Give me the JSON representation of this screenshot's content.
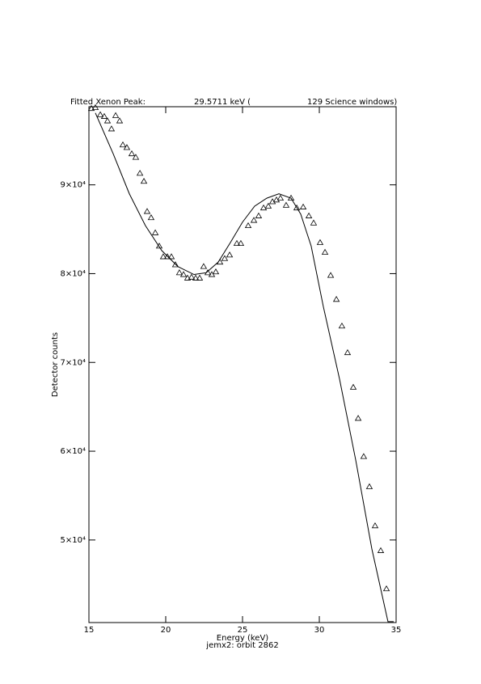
{
  "chart_data": {
    "type": "scatter",
    "title_parts": [
      "Fitted Xenon Peak:",
      "29.5711 keV (",
      "129 Science windows)"
    ],
    "xlabel": "Energy (keV)",
    "subtitle": "jemx2: orbit 2862",
    "ylabel": "Detector counts",
    "xlim": [
      15,
      35
    ],
    "xticks": [
      15,
      20,
      25,
      30,
      35
    ],
    "ylim": [
      40700,
      98800
    ],
    "yticks": [
      {
        "value": 50000,
        "label": "5×10⁴"
      },
      {
        "value": 60000,
        "label": "6×10⁴"
      },
      {
        "value": 70000,
        "label": "7×10⁴"
      },
      {
        "value": 80000,
        "label": "8×10⁴"
      },
      {
        "value": 90000,
        "label": "9×10⁴"
      }
    ],
    "series": [
      {
        "type": "scatter",
        "marker": "triangle",
        "color": "#000000",
        "x": [
          15.16,
          15.42,
          15.74,
          16.0,
          16.21,
          16.47,
          16.74,
          17.0,
          17.21,
          17.47,
          17.79,
          18.05,
          18.32,
          18.58,
          18.79,
          19.05,
          19.32,
          19.58,
          19.84,
          20.11,
          20.37,
          20.63,
          20.89,
          21.16,
          21.42,
          21.68,
          21.95,
          22.21,
          22.47,
          22.74,
          23.0,
          23.26,
          23.53,
          23.84,
          24.16,
          24.63,
          24.89,
          25.37,
          25.74,
          26.05,
          26.37,
          26.68,
          26.95,
          27.21,
          27.47,
          27.84,
          28.16,
          28.53,
          28.95,
          29.32,
          29.63,
          30.05,
          30.37,
          30.74,
          31.11,
          31.47,
          31.84,
          32.21,
          32.53,
          32.89,
          33.26,
          33.63,
          34.0,
          34.37
        ],
        "values": [
          98600,
          98700,
          97900,
          97700,
          97200,
          96300,
          97800,
          97200,
          94500,
          94200,
          93500,
          93100,
          91300,
          90400,
          87000,
          86300,
          84600,
          83100,
          81900,
          81900,
          81900,
          81000,
          80100,
          79900,
          79500,
          79600,
          79500,
          79500,
          80800,
          80100,
          79900,
          80200,
          81300,
          81700,
          82100,
          83400,
          83400,
          85400,
          86000,
          86500,
          87400,
          87600,
          88100,
          88300,
          88500,
          87700,
          88500,
          87400,
          87500,
          86500,
          85700,
          83500,
          82400,
          79800,
          77100,
          74100,
          71100,
          67200,
          63700,
          59400,
          56000,
          51600,
          48800,
          44500
        ]
      },
      {
        "type": "line",
        "color": "#000000",
        "x": [
          15.42,
          16.58,
          17.63,
          18.68,
          19.74,
          20.79,
          21.84,
          22.63,
          23.42,
          24.21,
          25.0,
          25.79,
          26.58,
          27.37,
          28.16,
          28.79,
          29.47,
          30.26,
          31.32,
          32.37,
          33.42,
          34.47,
          34.84
        ],
        "values": [
          98100,
          93500,
          89000,
          85400,
          82600,
          80800,
          79900,
          80100,
          81300,
          83500,
          85800,
          87600,
          88500,
          89000,
          88500,
          86700,
          83100,
          76300,
          68100,
          59000,
          49000,
          40800,
          40800
        ]
      }
    ]
  }
}
